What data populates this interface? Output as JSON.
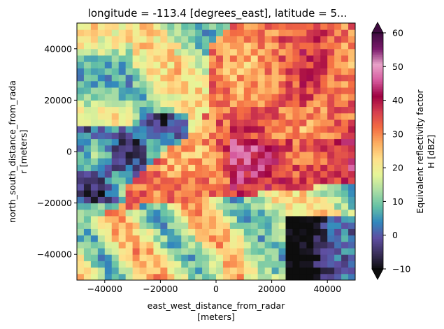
{
  "chart_data": {
    "type": "heatmap",
    "title": "longitude = -113.4 [degrees_east], latitude = 5...",
    "xlabel": {
      "line1": "east_west_distance_from_radar",
      "line2": "[meters]"
    },
    "ylabel": {
      "line1": "north_south_distance_from_rada",
      "line2": "r [meters]"
    },
    "xlim": [
      -50000,
      50000
    ],
    "ylim": [
      -50000,
      50000
    ],
    "x_ticks": [
      -40000,
      -20000,
      0,
      20000,
      40000
    ],
    "y_ticks": [
      -40000,
      -20000,
      0,
      20000,
      40000
    ],
    "colorbar": {
      "label": {
        "line1": "Equivalent reflectivity factor",
        "line2": "H [dBZ]"
      },
      "min": -10,
      "max": 60,
      "ticks": [
        -10,
        0,
        10,
        20,
        30,
        40,
        50,
        60
      ],
      "extend": "both",
      "colormap": "Spectral_r-like",
      "colors": [
        "#0d0d0d",
        "#3a2f5b",
        "#5e4fa2",
        "#3288bd",
        "#66c2a5",
        "#abdda4",
        "#e6f598",
        "#fee08b",
        "#fdae61",
        "#f46d43",
        "#d53e4f",
        "#9e0142",
        "#d65a9e",
        "#e9a3c9",
        "#7a1a6b",
        "#3f0b40"
      ]
    },
    "field_description_regions": [
      {
        "region": "north-east and east",
        "dbz_range": [
          28,
          45
        ]
      },
      {
        "region": "north-west",
        "dbz_range": [
          5,
          25
        ]
      },
      {
        "region": "west center",
        "dbz_range": [
          -10,
          10
        ]
      },
      {
        "region": "south-west",
        "dbz_range": [
          10,
          30
        ]
      },
      {
        "region": "south-east corner",
        "dbz_range": [
          -10,
          5
        ]
      }
    ]
  }
}
